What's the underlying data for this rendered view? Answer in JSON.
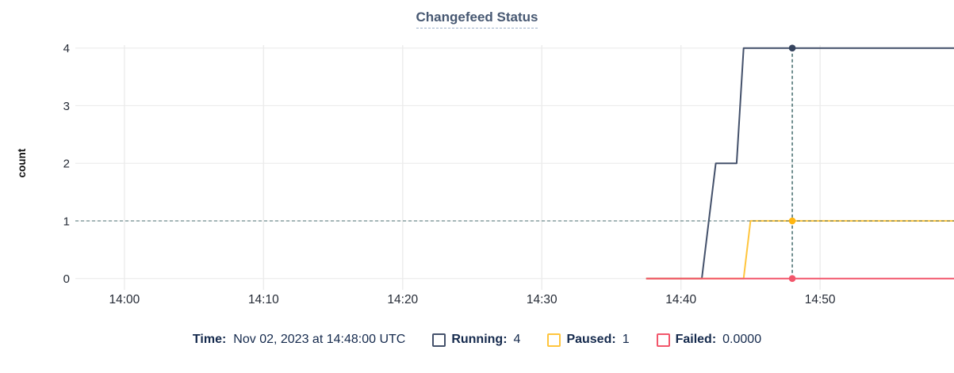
{
  "chart_data": {
    "type": "line",
    "title": "Changefeed Status",
    "xlabel": "",
    "ylabel": "count",
    "ylim": [
      0,
      4
    ],
    "y_ticks": [
      0,
      1,
      2,
      3,
      4
    ],
    "x_unit": "minutes after 14:00 UTC",
    "x_ticks": [
      {
        "min": 0,
        "label": "14:00"
      },
      {
        "min": 10,
        "label": "14:10"
      },
      {
        "min": 20,
        "label": "14:20"
      },
      {
        "min": 30,
        "label": "14:30"
      },
      {
        "min": 40,
        "label": "14:40"
      },
      {
        "min": 50,
        "label": "14:50"
      }
    ],
    "grid": true,
    "legend_position": "bottom",
    "series": [
      {
        "name": "Running",
        "color": "#44516b",
        "dot_color": "#36445e",
        "points": [
          [
            37.5,
            0
          ],
          [
            41.5,
            0
          ],
          [
            42.5,
            2
          ],
          [
            44,
            2
          ],
          [
            44.5,
            4
          ],
          [
            59.65,
            4
          ]
        ]
      },
      {
        "name": "Paused",
        "color": "#ffc53d",
        "dot_color": "#ffb612",
        "points": [
          [
            37.5,
            0
          ],
          [
            44.5,
            0
          ],
          [
            45,
            1
          ],
          [
            59.65,
            1
          ]
        ]
      },
      {
        "name": "Failed",
        "color": "#f2566b",
        "dot_color": "#f2566b",
        "points": [
          [
            37.5,
            0
          ],
          [
            59.65,
            0
          ]
        ]
      }
    ],
    "crosshair": {
      "x_min": 48,
      "time_label": "14:48:00 UTC",
      "hline_value": 1,
      "marker_values": {
        "Running": 4,
        "Paused": 1,
        "Failed": 0
      }
    }
  },
  "legend": {
    "time_label": "Time:",
    "time_value": "Nov 02, 2023 at 14:48:00 UTC",
    "items": [
      {
        "label": "Running:",
        "value": "4",
        "color": "#44516b"
      },
      {
        "label": "Paused:",
        "value": "1",
        "color": "#ffc53d"
      },
      {
        "label": "Failed:",
        "value": "0.0000",
        "color": "#f2566b"
      }
    ]
  },
  "colors": {
    "title": "#475872",
    "grid": "#ececec",
    "axis_text": "#242a35",
    "crosshair": "#41696b",
    "legend_text": "#152a4d"
  }
}
